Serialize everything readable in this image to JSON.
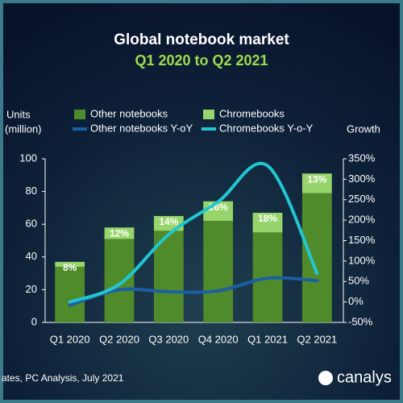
{
  "chart_data": {
    "type": "bar",
    "title": "Global notebook market",
    "subtitle": "Q1 2020 to Q2 2021",
    "y_label": [
      "Units",
      "(million)"
    ],
    "y2_label": "Growth",
    "categories": [
      "Q1 2020",
      "Q2 2020",
      "Q3 2020",
      "Q4 2020",
      "Q1 2021",
      "Q2 2021"
    ],
    "series": [
      {
        "name": "Other notebooks",
        "color": "#4f8a2b",
        "values": [
          34,
          51,
          56,
          62,
          55,
          79
        ]
      },
      {
        "name": "Chromebooks",
        "color": "#97d56c",
        "values": [
          3,
          7,
          9,
          12,
          12,
          12
        ]
      },
      {
        "name": "Other notebooks Y-oY",
        "color": "#1d5fa3",
        "axis": "y2",
        "values": [
          -8,
          30,
          25,
          27,
          58,
          52
        ]
      },
      {
        "name": "Chromebooks Y-o-Y",
        "color": "#22c6d0",
        "axis": "y2",
        "values": [
          0,
          43,
          165,
          245,
          333,
          70
        ]
      }
    ],
    "share_labels": [
      "8%",
      "12%",
      "14%",
      "16%",
      "18%",
      "13%"
    ],
    "ylim": [
      0,
      100
    ],
    "yticks": [
      0,
      20,
      40,
      60,
      80,
      100
    ],
    "y2lim": [
      -50,
      350
    ],
    "y2ticks": [
      {
        "value": -50,
        "label": "-50%"
      },
      {
        "value": 0,
        "label": "0%"
      },
      {
        "value": 50,
        "label": "50%"
      },
      {
        "value": 100,
        "label": "100%"
      },
      {
        "value": 150,
        "label": "150%"
      },
      {
        "value": 200,
        "label": "200%"
      },
      {
        "value": 250,
        "label": "250%"
      },
      {
        "value": 300,
        "label": "300%"
      },
      {
        "value": 350,
        "label": "350%"
      }
    ],
    "source": "ates, PC Analysis, July 2021",
    "logo": "canalys"
  }
}
